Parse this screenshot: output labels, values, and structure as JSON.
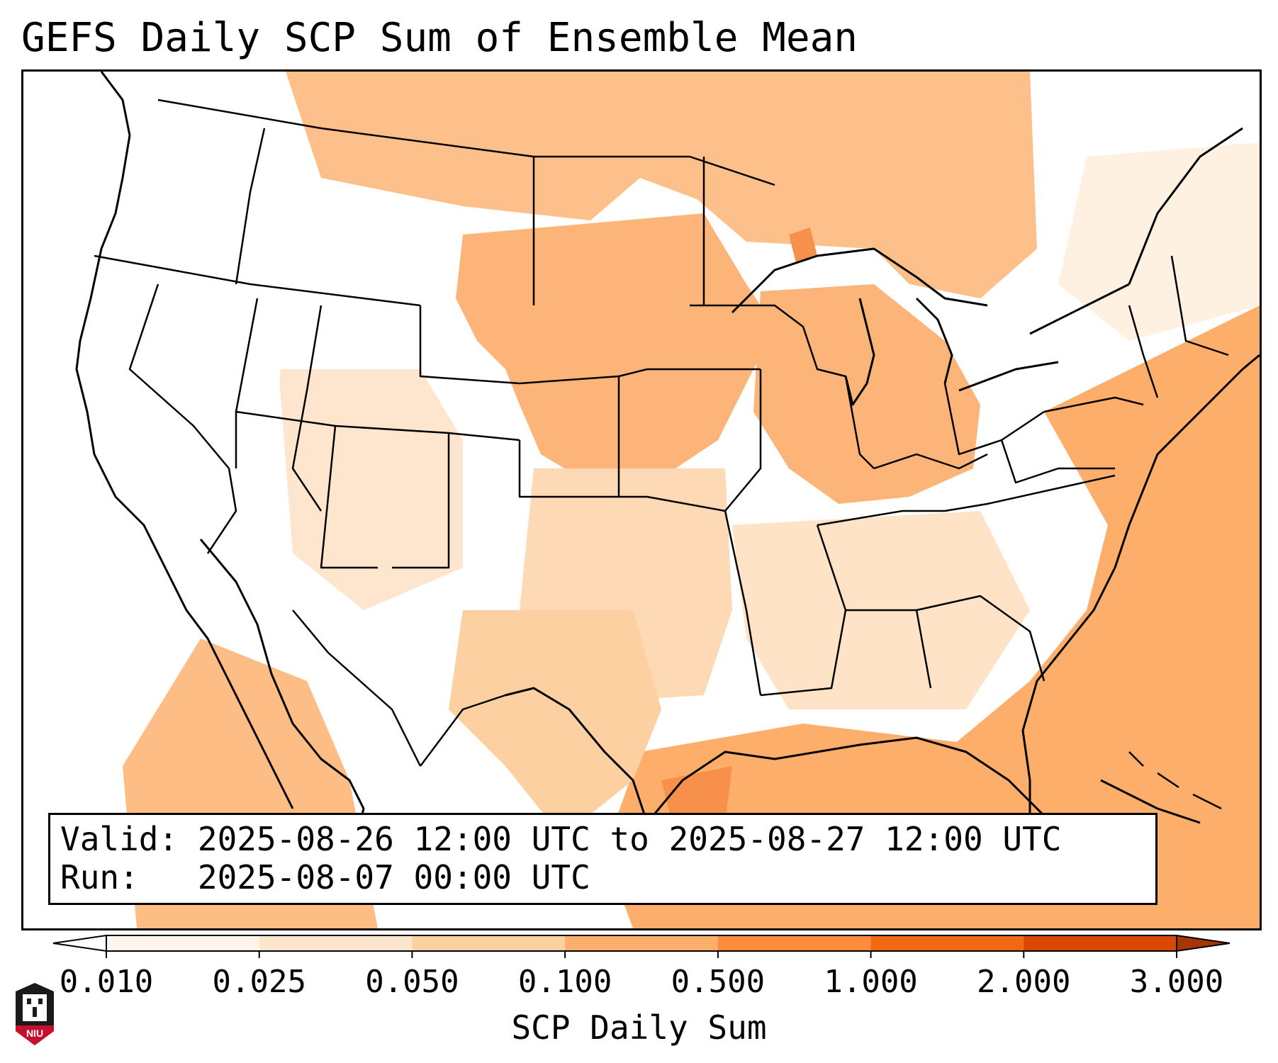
{
  "title": "GEFS Daily SCP Sum of Ensemble Mean",
  "info": {
    "valid_label": "Valid:",
    "valid_value": "2025-08-26 12:00 UTC to 2025-08-27 12:00 UTC",
    "run_label": "Run:",
    "run_value": "2025-08-07 00:00 UTC"
  },
  "colorbar": {
    "label": "SCP Daily Sum",
    "ticks": [
      "0.010",
      "0.025",
      "0.050",
      "0.100",
      "0.500",
      "1.000",
      "2.000",
      "3.000"
    ],
    "colors": [
      "#fff5eb",
      "#fee6ce",
      "#fdd0a2",
      "#fdae6b",
      "#fd8d3c",
      "#f16913",
      "#d94801",
      "#a63603"
    ],
    "extend": "both"
  },
  "logo": {
    "text": "NIU"
  },
  "colors": {
    "background": "#ffffff",
    "border": "#000000",
    "logo_red": "#c8102e",
    "logo_black": "#1a1a1a"
  }
}
